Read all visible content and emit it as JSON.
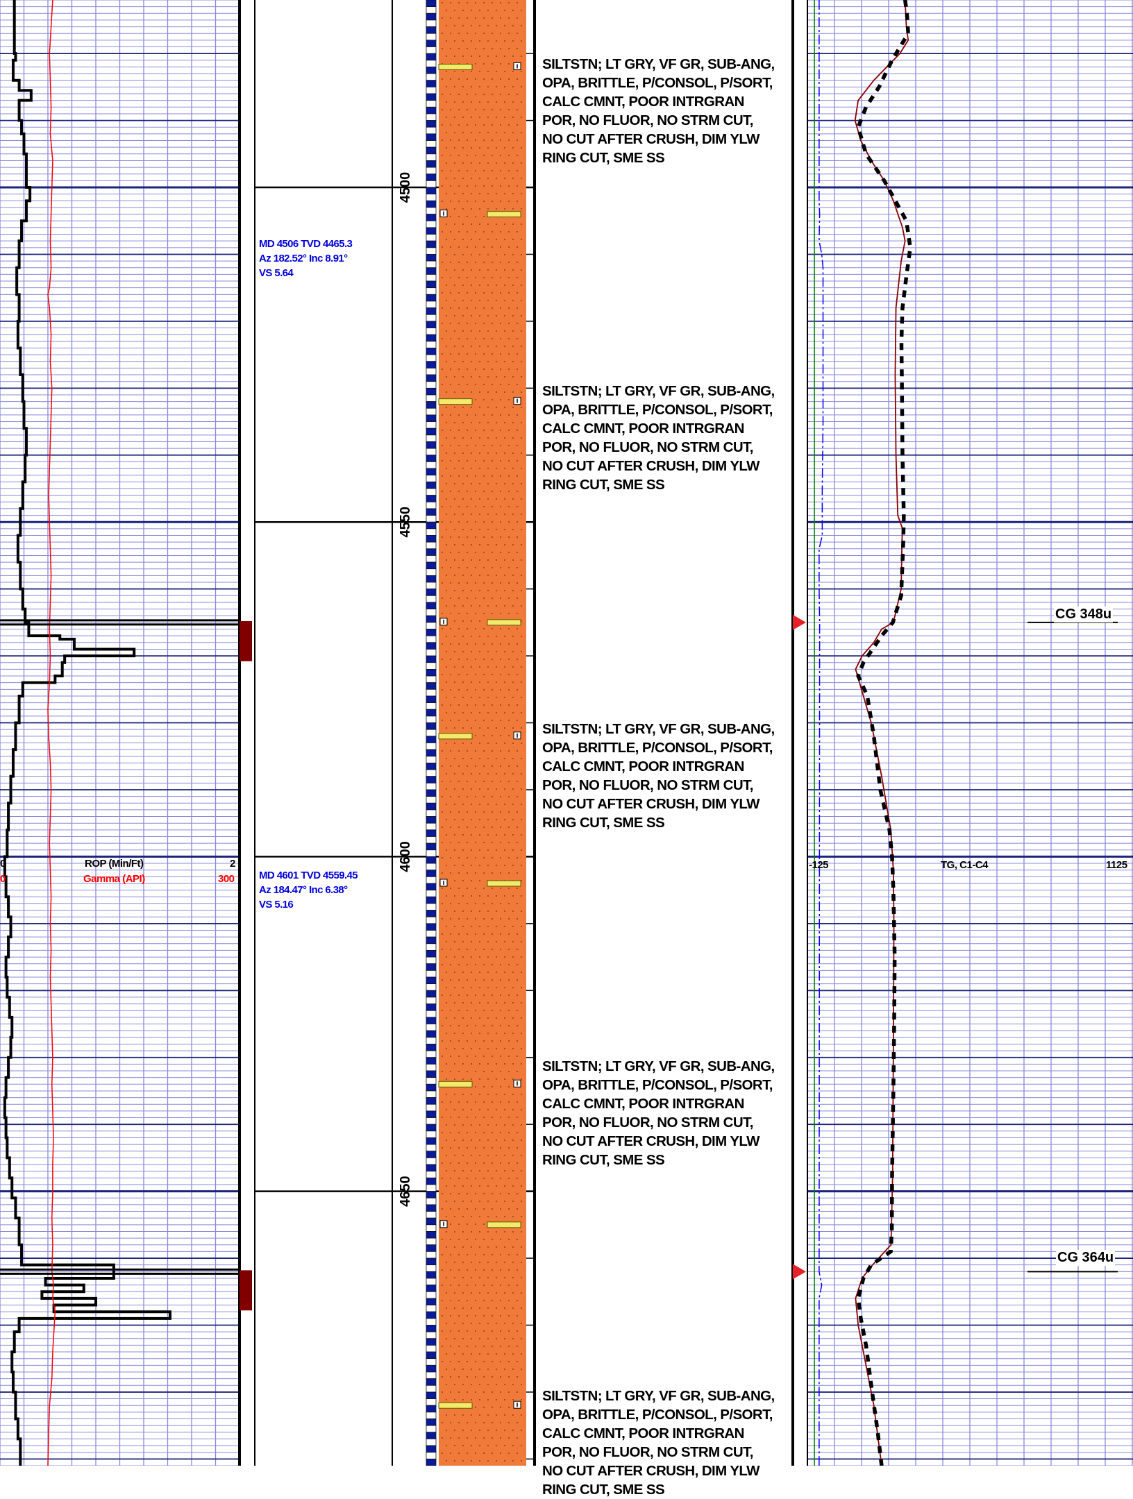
{
  "chart_data": {
    "type": "line",
    "depth_axis": {
      "unit": "ft MD",
      "top": 4472,
      "bottom": 4691,
      "labeled_ticks": [
        "4500",
        "4550",
        "4600",
        "4650"
      ]
    },
    "track1": {
      "header": {
        "rop": {
          "label": "ROP (Min/Ft)",
          "left": "0",
          "right": "2"
        },
        "gamma": {
          "label": "Gamma (API)",
          "left": "0",
          "right": "300"
        }
      },
      "colors": {
        "rop": "#000000",
        "gamma": "#ff0000",
        "grid_minor": "#8888dd",
        "grid_major": "#1a237e"
      },
      "rop_steps": [
        [
          4472,
          0.12
        ],
        [
          4480,
          0.13
        ],
        [
          4481,
          0.11
        ],
        [
          4484,
          0.16
        ],
        [
          4485.5,
          0.26
        ],
        [
          4487,
          0.16
        ],
        [
          4490,
          0.18
        ],
        [
          4492,
          0.2
        ],
        [
          4495,
          0.22
        ],
        [
          4500,
          0.25
        ],
        [
          4502,
          0.22
        ],
        [
          4505,
          0.18
        ],
        [
          4508,
          0.16
        ],
        [
          4512,
          0.14
        ],
        [
          4516,
          0.16
        ],
        [
          4520,
          0.15
        ],
        [
          4524,
          0.17
        ],
        [
          4528,
          0.19
        ],
        [
          4532,
          0.2
        ],
        [
          4536,
          0.22
        ],
        [
          4540,
          0.21
        ],
        [
          4544,
          0.19
        ],
        [
          4548,
          0.17
        ],
        [
          4552,
          0.15
        ],
        [
          4556,
          0.17
        ],
        [
          4560,
          0.19
        ],
        [
          4563,
          0.21
        ],
        [
          4565,
          0.24
        ],
        [
          4567,
          0.5
        ],
        [
          4567.5,
          0.62
        ],
        [
          4569,
          1.12
        ],
        [
          4570,
          0.54
        ],
        [
          4571,
          0.52
        ],
        [
          4573,
          0.46
        ],
        [
          4574,
          0.19
        ],
        [
          4576,
          0.16
        ],
        [
          4580,
          0.13
        ],
        [
          4584,
          0.11
        ],
        [
          4588,
          0.09
        ],
        [
          4592,
          0.07
        ],
        [
          4596,
          0.06
        ],
        [
          4600,
          0.04
        ],
        [
          4603,
          0.05
        ],
        [
          4606,
          0.07
        ],
        [
          4609,
          0.09
        ],
        [
          4612,
          0.07
        ],
        [
          4615,
          0.05
        ],
        [
          4618,
          0.06
        ],
        [
          4621,
          0.08
        ],
        [
          4624,
          0.1
        ],
        [
          4627,
          0.09
        ],
        [
          4630,
          0.07
        ],
        [
          4633,
          0.05
        ],
        [
          4636,
          0.04
        ],
        [
          4639,
          0.05
        ],
        [
          4642,
          0.06
        ],
        [
          4645,
          0.08
        ],
        [
          4648,
          0.1
        ],
        [
          4651,
          0.13
        ],
        [
          4654,
          0.16
        ],
        [
          4658,
          0.18
        ],
        [
          4661,
          0.95
        ],
        [
          4663,
          0.38
        ],
        [
          4664,
          0.7
        ],
        [
          4665,
          0.35
        ],
        [
          4666,
          0.8
        ],
        [
          4667,
          0.45
        ],
        [
          4668,
          1.42
        ],
        [
          4669,
          0.16
        ],
        [
          4671,
          0.12
        ],
        [
          4674,
          0.1
        ],
        [
          4677,
          0.11
        ],
        [
          4680,
          0.13
        ],
        [
          4684,
          0.15
        ],
        [
          4687,
          0.17
        ],
        [
          4691,
          0.18
        ]
      ],
      "gamma": [
        [
          4472,
          66
        ],
        [
          4476,
          64
        ],
        [
          4480,
          62
        ],
        [
          4484,
          63
        ],
        [
          4488,
          64
        ],
        [
          4492,
          63
        ],
        [
          4496,
          66
        ],
        [
          4500,
          65
        ],
        [
          4504,
          64
        ],
        [
          4508,
          63
        ],
        [
          4512,
          64
        ],
        [
          4515,
          62
        ],
        [
          4516,
          60
        ],
        [
          4518,
          62
        ],
        [
          4522,
          64
        ],
        [
          4526,
          63
        ],
        [
          4530,
          65
        ],
        [
          4534,
          64
        ],
        [
          4538,
          63
        ],
        [
          4542,
          62
        ],
        [
          4546,
          61
        ],
        [
          4550,
          62
        ],
        [
          4554,
          63
        ],
        [
          4558,
          64
        ],
        [
          4562,
          63
        ],
        [
          4566,
          62
        ],
        [
          4570,
          63
        ],
        [
          4574,
          62
        ],
        [
          4578,
          60
        ],
        [
          4582,
          61
        ],
        [
          4586,
          63
        ],
        [
          4590,
          64
        ],
        [
          4594,
          63
        ],
        [
          4598,
          62
        ],
        [
          4602,
          63
        ],
        [
          4606,
          64
        ],
        [
          4610,
          63
        ],
        [
          4614,
          64
        ],
        [
          4618,
          63
        ],
        [
          4622,
          64
        ],
        [
          4626,
          65
        ],
        [
          4630,
          66
        ],
        [
          4634,
          65
        ],
        [
          4638,
          66
        ],
        [
          4642,
          67
        ],
        [
          4646,
          66
        ],
        [
          4650,
          66
        ],
        [
          4654,
          65
        ],
        [
          4658,
          66
        ],
        [
          4662,
          65
        ],
        [
          4664,
          67
        ],
        [
          4666,
          66
        ],
        [
          4668,
          69
        ],
        [
          4670,
          68
        ],
        [
          4674,
          66
        ],
        [
          4678,
          65
        ],
        [
          4682,
          62
        ],
        [
          4686,
          61
        ],
        [
          4691,
          60
        ]
      ]
    },
    "surveys": [
      {
        "md_depth": 4506,
        "lines": "MD 4506 TVD 4465.3\nAz 182.52° Inc 8.91°\nVS 5.64"
      },
      {
        "md_depth": 4601,
        "lines": "MD 4601 TVD 4559.45\nAz 184.47° Inc 6.38°\nVS 5.16"
      }
    ],
    "connection_markers": [
      4565,
      4662
    ],
    "lithology": {
      "name": "siltstone",
      "fill": "#f07a3a",
      "dot": "#7a2d0f",
      "depth_bar": [
        "#0a1a9a",
        "#ffffff"
      ]
    },
    "descriptions": [
      {
        "depth": 4476,
        "text": "SILTSTN; LT GRY, VF GR, SUB-ANG,\nOPA, BRITTLE, P/CONSOL, P/SORT,\nCALC CMNT, POOR INTRGRAN\nPOR, NO FLUOR, NO STRM CUT,\nNO CUT AFTER CRUSH, DIM YLW\nRING CUT, SME SS"
      },
      {
        "depth": 4526,
        "text": "SILTSTN; LT GRY, VF GR, SUB-ANG,\nOPA, BRITTLE, P/CONSOL, P/SORT,\nCALC CMNT, POOR INTRGRAN\nPOR, NO FLUOR, NO STRM CUT,\nNO CUT AFTER CRUSH, DIM YLW\nRING CUT, SME SS"
      },
      {
        "depth": 4577,
        "text": "SILTSTN; LT GRY, VF GR, SUB-ANG,\nOPA, BRITTLE, P/CONSOL, P/SORT,\nCALC CMNT, POOR INTRGRAN\nPOR, NO FLUOR, NO STRM CUT,\nNO CUT AFTER CRUSH, DIM YLW\nRING CUT, SME SS"
      },
      {
        "depth": 4627,
        "text": "SILTSTN; LT GRY, VF GR, SUB-ANG,\nOPA, BRITTLE, P/CONSOL, P/SORT,\nCALC CMNT, POOR INTRGRAN\nPOR, NO FLUOR, NO STRM CUT,\nNO CUT AFTER CRUSH, DIM YLW\nRING CUT, SME SS"
      },
      {
        "depth": 4677,
        "text": "SILTSTN; LT GRY, VF GR, SUB-ANG,\nOPA, BRITTLE, P/CONSOL, P/SORT,\nCALC CMNT, POOR INTRGRAN\nPOR, NO FLUOR, NO STRM CUT,\nNO CUT AFTER CRUSH, DIM YLW\nRING CUT, SME SS"
      }
    ],
    "gas_track": {
      "header": {
        "label": "TG, C1-C4",
        "left": "-125",
        "right": "1125"
      },
      "colors": {
        "tg": "#000000",
        "c1_c4": "#8b0000",
        "blue": "#0000ff",
        "green": "#008000"
      },
      "tg": [
        [
          4472,
          250
        ],
        [
          4474,
          257
        ],
        [
          4477,
          262
        ],
        [
          4481,
          200
        ],
        [
          4485,
          150
        ],
        [
          4488,
          100
        ],
        [
          4491,
          70
        ],
        [
          4495,
          100
        ],
        [
          4499,
          170
        ],
        [
          4505,
          255
        ],
        [
          4509,
          270
        ],
        [
          4513,
          256
        ],
        [
          4518,
          240
        ],
        [
          4523,
          236
        ],
        [
          4530,
          238
        ],
        [
          4540,
          240
        ],
        [
          4549,
          245
        ],
        [
          4553,
          243
        ],
        [
          4561,
          235
        ],
        [
          4565,
          203
        ],
        [
          4567,
          160
        ],
        [
          4571,
          90
        ],
        [
          4573,
          70
        ],
        [
          4576,
          105
        ],
        [
          4582,
          130
        ],
        [
          4590,
          155
        ],
        [
          4596,
          190
        ],
        [
          4600,
          200
        ],
        [
          4605,
          205
        ],
        [
          4615,
          210
        ],
        [
          4625,
          208
        ],
        [
          4635,
          205
        ],
        [
          4648,
          200
        ],
        [
          4656,
          199
        ],
        [
          4659,
          195
        ],
        [
          4661,
          120
        ],
        [
          4663,
          90
        ],
        [
          4666,
          70
        ],
        [
          4669,
          80
        ],
        [
          4673,
          100
        ],
        [
          4679,
          120
        ],
        [
          4686,
          145
        ],
        [
          4691,
          160
        ]
      ],
      "c1_c4": [
        [
          4472,
          250
        ],
        [
          4476,
          255
        ],
        [
          4478,
          262
        ],
        [
          4480,
          230
        ],
        [
          4484,
          130
        ],
        [
          4487,
          70
        ],
        [
          4490,
          58
        ],
        [
          4493,
          80
        ],
        [
          4496,
          120
        ],
        [
          4499,
          170
        ],
        [
          4502,
          205
        ],
        [
          4506,
          240
        ],
        [
          4508,
          250
        ],
        [
          4511,
          235
        ],
        [
          4518,
          215
        ],
        [
          4528,
          212
        ],
        [
          4540,
          215
        ],
        [
          4549,
          222
        ],
        [
          4551,
          240
        ],
        [
          4553,
          238
        ],
        [
          4560,
          235
        ],
        [
          4565,
          205
        ],
        [
          4566,
          160
        ],
        [
          4568,
          130
        ],
        [
          4570,
          85
        ],
        [
          4572,
          60
        ],
        [
          4574,
          75
        ],
        [
          4580,
          120
        ],
        [
          4588,
          160
        ],
        [
          4596,
          195
        ],
        [
          4602,
          205
        ],
        [
          4610,
          207
        ],
        [
          4630,
          205
        ],
        [
          4648,
          202
        ],
        [
          4658,
          196
        ],
        [
          4661,
          125
        ],
        [
          4663,
          85
        ],
        [
          4666,
          60
        ],
        [
          4670,
          70
        ],
        [
          4676,
          100
        ],
        [
          4682,
          130
        ],
        [
          4688,
          150
        ],
        [
          4691,
          160
        ]
      ],
      "blue": [
        [
          4472,
          -80
        ],
        [
          4502,
          -80
        ],
        [
          4504,
          -78
        ],
        [
          4508,
          -80
        ],
        [
          4510,
          -70
        ],
        [
          4512,
          -65
        ],
        [
          4535,
          -65
        ],
        [
          4545,
          -68
        ],
        [
          4552,
          -68
        ],
        [
          4554,
          -80
        ],
        [
          4560,
          -80
        ],
        [
          4565,
          -78
        ],
        [
          4662,
          -80
        ],
        [
          4664,
          -70
        ],
        [
          4666,
          -80
        ],
        [
          4691,
          -80
        ]
      ],
      "green": [
        [
          4472,
          -98
        ],
        [
          4691,
          -98
        ]
      ],
      "marks": [
        {
          "depth": 4565,
          "label": "CG 348u"
        },
        {
          "depth": 4662,
          "label": "CG 364u"
        }
      ]
    }
  }
}
